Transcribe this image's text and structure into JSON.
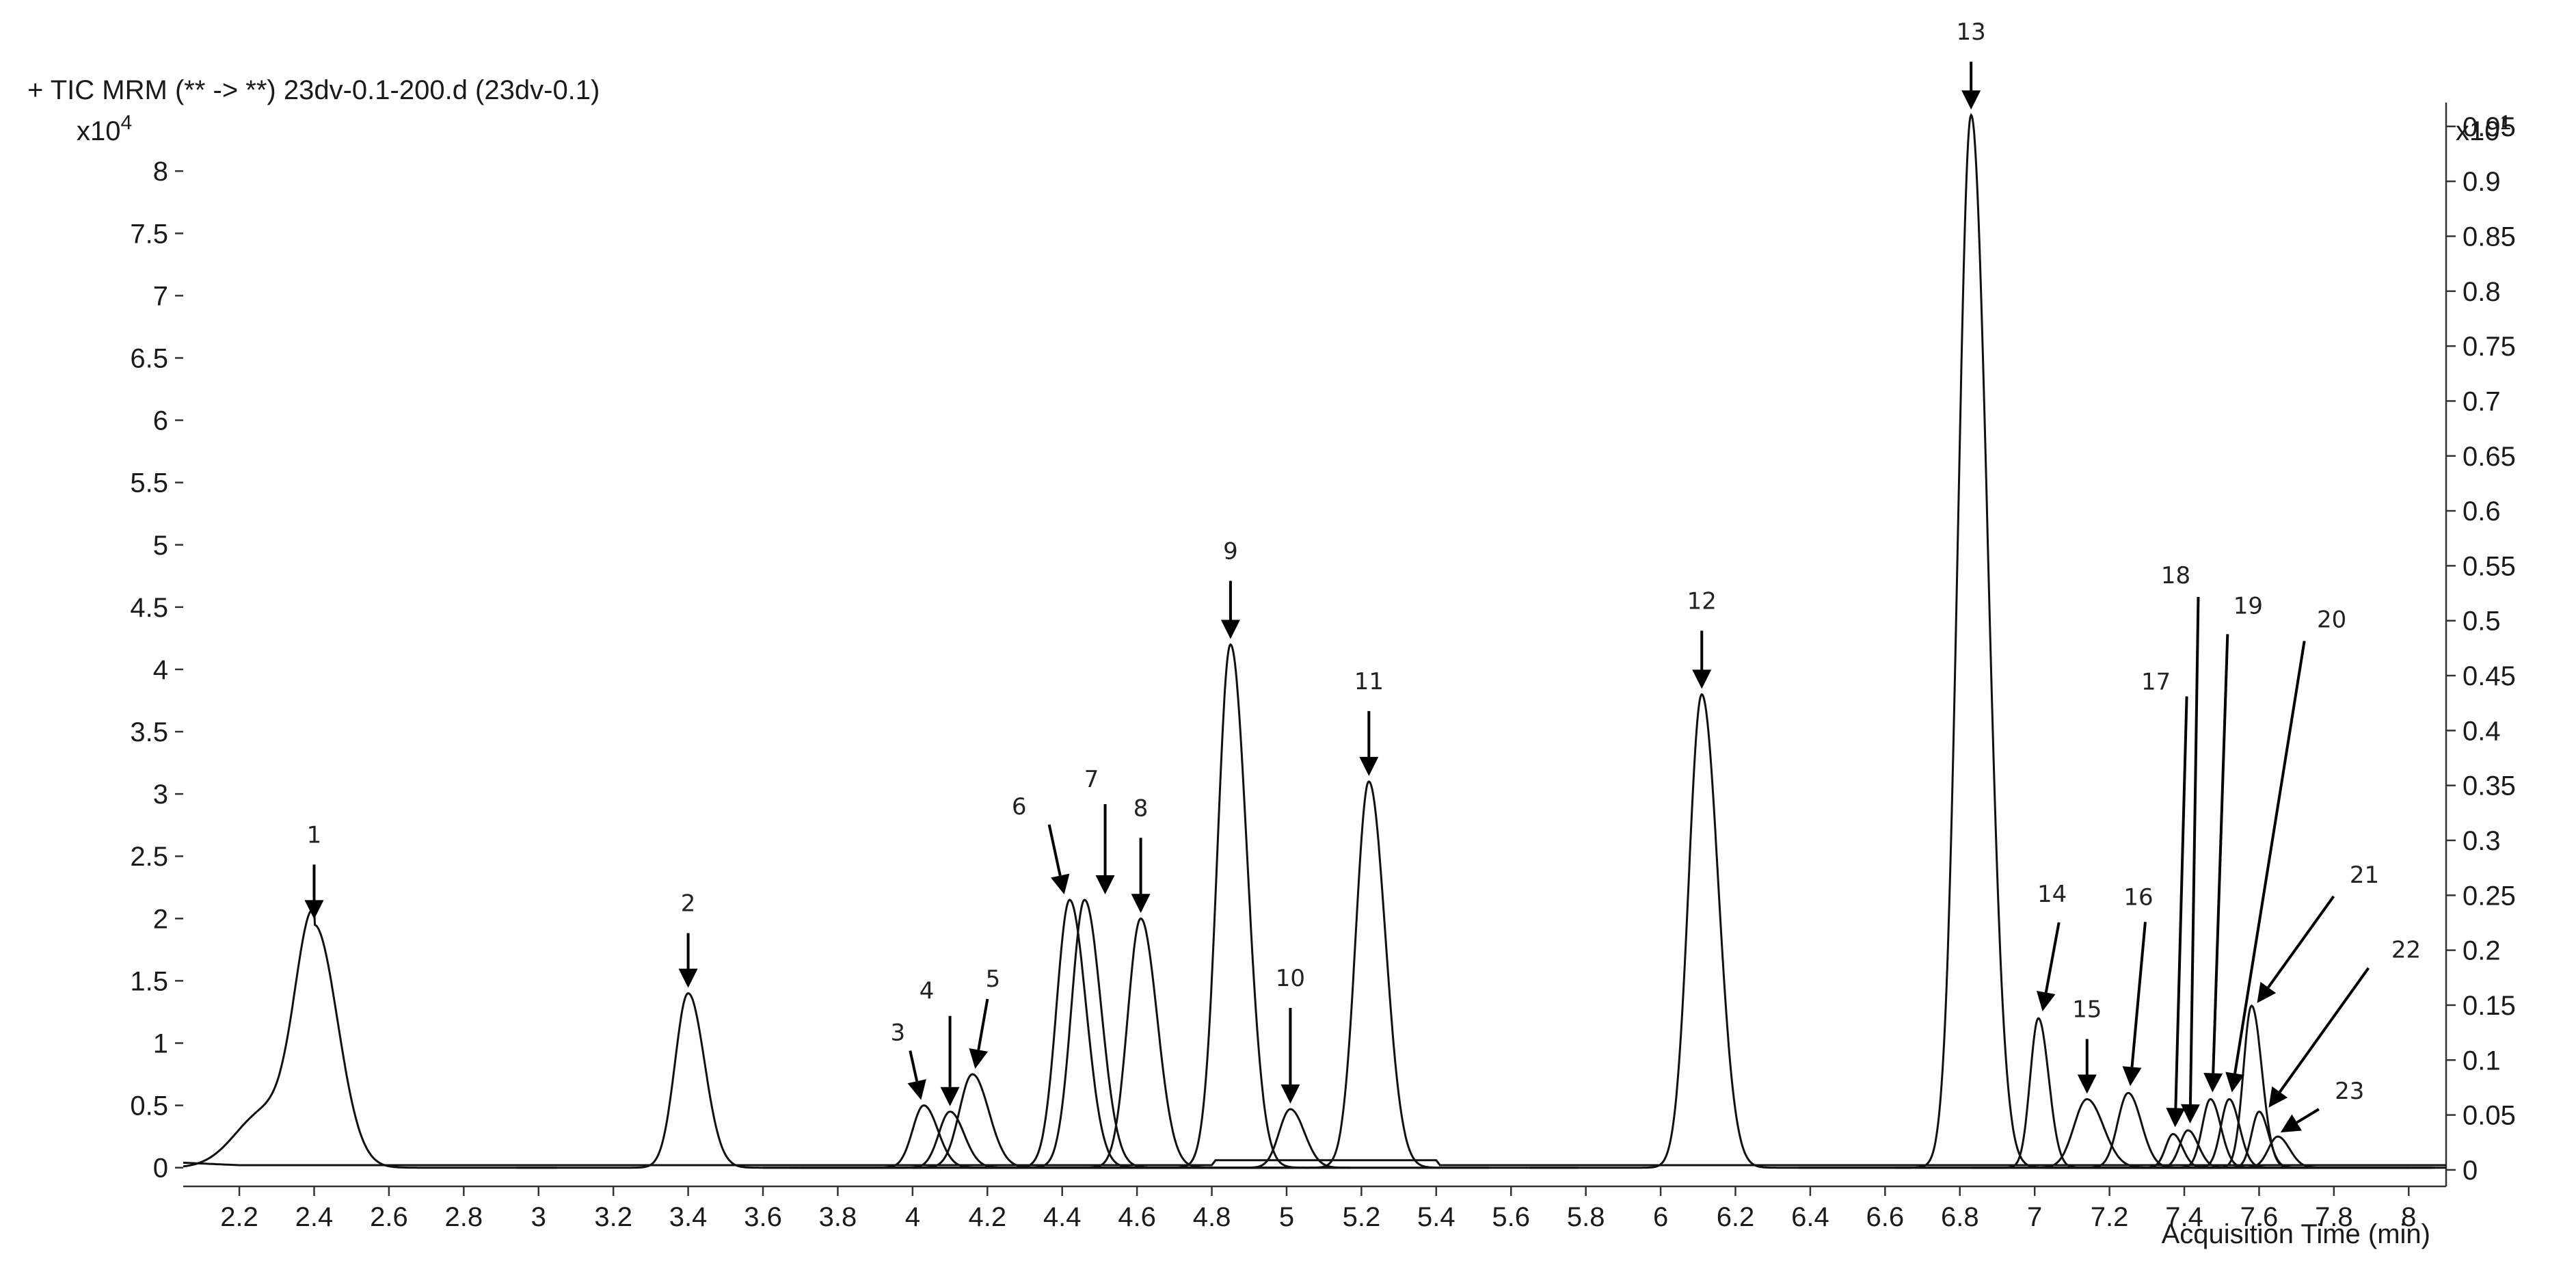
{
  "chart_data": {
    "type": "line",
    "title": "+ TIC MRM (** -> **) 23dv-0.1-200.d (23dv-0.1)",
    "xlabel": "Acquisition Time (min)",
    "ylabel": "",
    "y_exponent_left": "x10",
    "y_exponent_left_power": "4",
    "y_exponent_right": "x10",
    "y_exponent_right_power": "1",
    "xlim": [
      2.05,
      8.1
    ],
    "ylim": [
      -0.15,
      8.55
    ],
    "ylim_right": [
      -0.015,
      0.9717
    ],
    "x_ticks": [
      "2.2",
      "2.4",
      "2.6",
      "2.8",
      "3",
      "3.2",
      "3.4",
      "3.6",
      "3.8",
      "4",
      "4.2",
      "4.4",
      "4.6",
      "4.8",
      "5",
      "5.2",
      "5.4",
      "5.6",
      "5.8",
      "6",
      "6.2",
      "6.4",
      "6.6",
      "6.8",
      "7",
      "7.2",
      "7.4",
      "7.6",
      "7.8",
      "8"
    ],
    "y_ticks_left": [
      "0",
      "0.5",
      "1",
      "1.5",
      "2",
      "2.5",
      "3",
      "3.5",
      "4",
      "4.5",
      "5",
      "5.5",
      "6",
      "6.5",
      "7",
      "7.5",
      "8"
    ],
    "y_ticks_right": [
      "0",
      "0.05",
      "0.1",
      "0.15",
      "0.2",
      "0.25",
      "0.3",
      "0.35",
      "0.4",
      "0.45",
      "0.5",
      "0.55",
      "0.6",
      "0.65",
      "0.7",
      "0.75",
      "0.8",
      "0.85",
      "0.9",
      "0.95"
    ],
    "grid": false,
    "series": [
      {
        "x": 2.4,
        "y": 1.95,
        "width": 0.05
      },
      {
        "x": 3.4,
        "y": 1.4,
        "width": 0.035
      },
      {
        "x": 4.03,
        "y": 0.5,
        "width": 0.03
      },
      {
        "x": 4.1,
        "y": 0.45,
        "width": 0.03
      },
      {
        "x": 4.16,
        "y": 0.75,
        "width": 0.035
      },
      {
        "x": 4.42,
        "y": 2.15,
        "width": 0.035
      },
      {
        "x": 4.46,
        "y": 2.15,
        "width": 0.035
      },
      {
        "x": 4.61,
        "y": 2.0,
        "width": 0.035
      },
      {
        "x": 4.85,
        "y": 4.2,
        "width": 0.035
      },
      {
        "x": 5.01,
        "y": 0.47,
        "width": 0.03
      },
      {
        "x": 5.22,
        "y": 3.1,
        "width": 0.035
      },
      {
        "x": 6.11,
        "y": 3.8,
        "width": 0.035
      },
      {
        "x": 6.83,
        "y": 8.45,
        "width": 0.035
      },
      {
        "x": 7.01,
        "y": 1.2,
        "width": 0.022
      },
      {
        "x": 7.14,
        "y": 0.55,
        "width": 0.035
      },
      {
        "x": 7.25,
        "y": 0.6,
        "width": 0.028
      },
      {
        "x": 7.37,
        "y": 0.27,
        "width": 0.02
      },
      {
        "x": 7.41,
        "y": 0.3,
        "width": 0.022
      },
      {
        "x": 7.47,
        "y": 0.55,
        "width": 0.022
      },
      {
        "x": 7.52,
        "y": 0.55,
        "width": 0.022
      },
      {
        "x": 7.58,
        "y": 1.3,
        "width": 0.022
      },
      {
        "x": 7.6,
        "y": 0.45,
        "width": 0.02
      },
      {
        "x": 7.65,
        "y": 0.25,
        "width": 0.025
      }
    ],
    "annotations": [
      {
        "label": "1",
        "x": 2.4,
        "y": 1.95
      },
      {
        "label": "2",
        "x": 3.4,
        "y": 1.4
      },
      {
        "label": "3",
        "x": 4.03,
        "y": 0.5
      },
      {
        "label": "4",
        "x": 4.1,
        "y": 0.45
      },
      {
        "label": "5",
        "x": 4.16,
        "y": 0.75
      },
      {
        "label": "6",
        "x": 4.42,
        "y": 2.15
      },
      {
        "label": "7",
        "x": 4.46,
        "y": 2.15
      },
      {
        "label": "8",
        "x": 4.61,
        "y": 2.0
      },
      {
        "label": "9",
        "x": 4.85,
        "y": 4.2
      },
      {
        "label": "10",
        "x": 5.01,
        "y": 0.47
      },
      {
        "label": "11",
        "x": 5.22,
        "y": 3.1
      },
      {
        "label": "12",
        "x": 6.11,
        "y": 3.8
      },
      {
        "label": "13",
        "x": 6.83,
        "y": 8.45
      },
      {
        "label": "14",
        "x": 7.01,
        "y": 1.2
      },
      {
        "label": "15",
        "x": 7.14,
        "y": 0.55
      },
      {
        "label": "16",
        "x": 7.25,
        "y": 0.6
      },
      {
        "label": "17",
        "x": 7.37,
        "y": 0.27
      },
      {
        "label": "18",
        "x": 7.41,
        "y": 0.3
      },
      {
        "label": "19",
        "x": 7.47,
        "y": 0.55
      },
      {
        "label": "20",
        "x": 7.52,
        "y": 0.55
      },
      {
        "label": "21",
        "x": 7.58,
        "y": 1.3
      },
      {
        "label": "22",
        "x": 7.6,
        "y": 0.45
      },
      {
        "label": "23",
        "x": 7.65,
        "y": 0.25
      }
    ]
  }
}
